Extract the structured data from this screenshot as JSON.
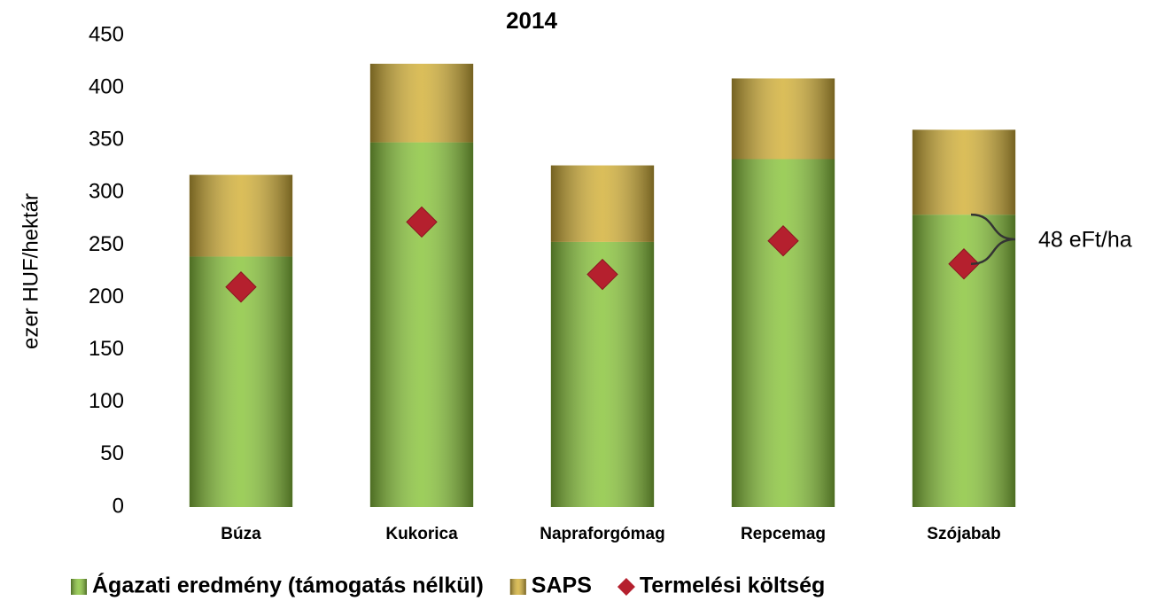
{
  "chart_data": {
    "type": "bar",
    "stacked": true,
    "title": "2014",
    "y_label": "ezer HUF/hektár",
    "categories": [
      "Búza",
      "Kukorica",
      "Napraforgómag",
      "Repcemag",
      "Szójabab"
    ],
    "series": [
      {
        "name": "Ágazati eredmény (támogatás nélkül)",
        "color": "#8cc63f",
        "values": [
          239,
          348,
          253,
          332,
          279
        ]
      },
      {
        "name": "SAPS",
        "color": "#d4b23c",
        "values": [
          78,
          75,
          73,
          77,
          81
        ]
      },
      {
        "name": "Termelési költség",
        "color": "#b5202e",
        "type": "scatter",
        "marker": "diamond",
        "values": [
          210,
          272,
          222,
          254,
          232
        ]
      }
    ],
    "ylim": [
      0,
      450
    ],
    "yticks": [
      0,
      50,
      100,
      150,
      200,
      250,
      300,
      350,
      400,
      450
    ],
    "annotation": "48 eFt/ha",
    "legend": "bottom"
  }
}
